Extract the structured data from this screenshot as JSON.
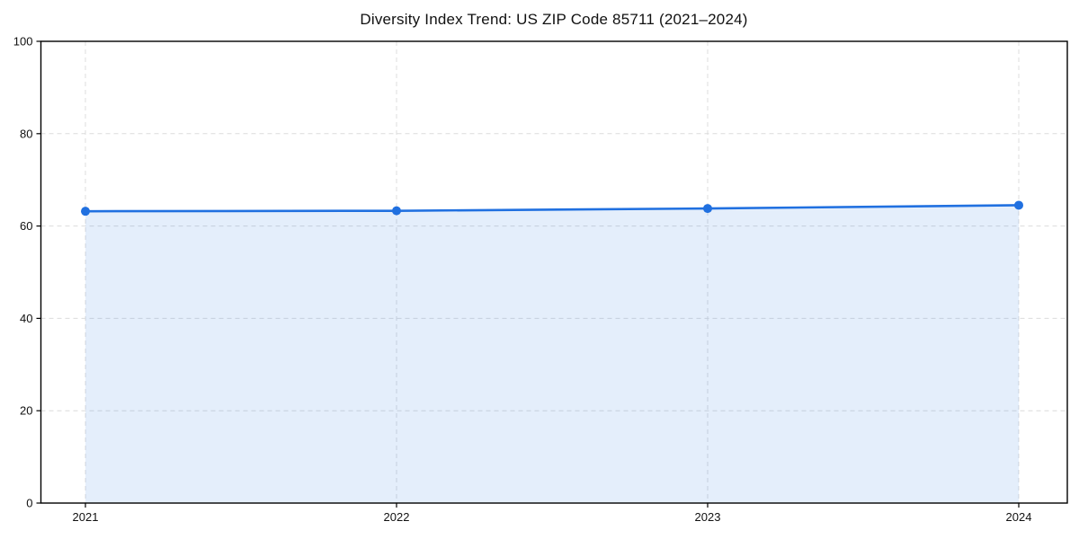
{
  "chart_data": {
    "type": "area",
    "title": "Diversity Index Trend: US ZIP Code 85711 (2021–2024)",
    "categories": [
      "2021",
      "2022",
      "2023",
      "2024"
    ],
    "series": [
      {
        "name": "Diversity Index",
        "values": [
          63.2,
          63.3,
          63.8,
          64.5
        ]
      }
    ],
    "xlabel": "",
    "ylabel": "",
    "ylim": [
      0,
      100
    ],
    "yticks": [
      0,
      20,
      40,
      60,
      80,
      100
    ],
    "grid": true,
    "grid_style": "dashed",
    "legend_position": "none",
    "marker": "circle",
    "colors": {
      "line": "#2070e0",
      "marker": "#2070e0",
      "area_fill": "rgba(32, 112, 224, 0.12)",
      "grid": "#dcdcdc",
      "spine": "#000000",
      "tick_label": "#111111",
      "background": "#ffffff"
    }
  }
}
